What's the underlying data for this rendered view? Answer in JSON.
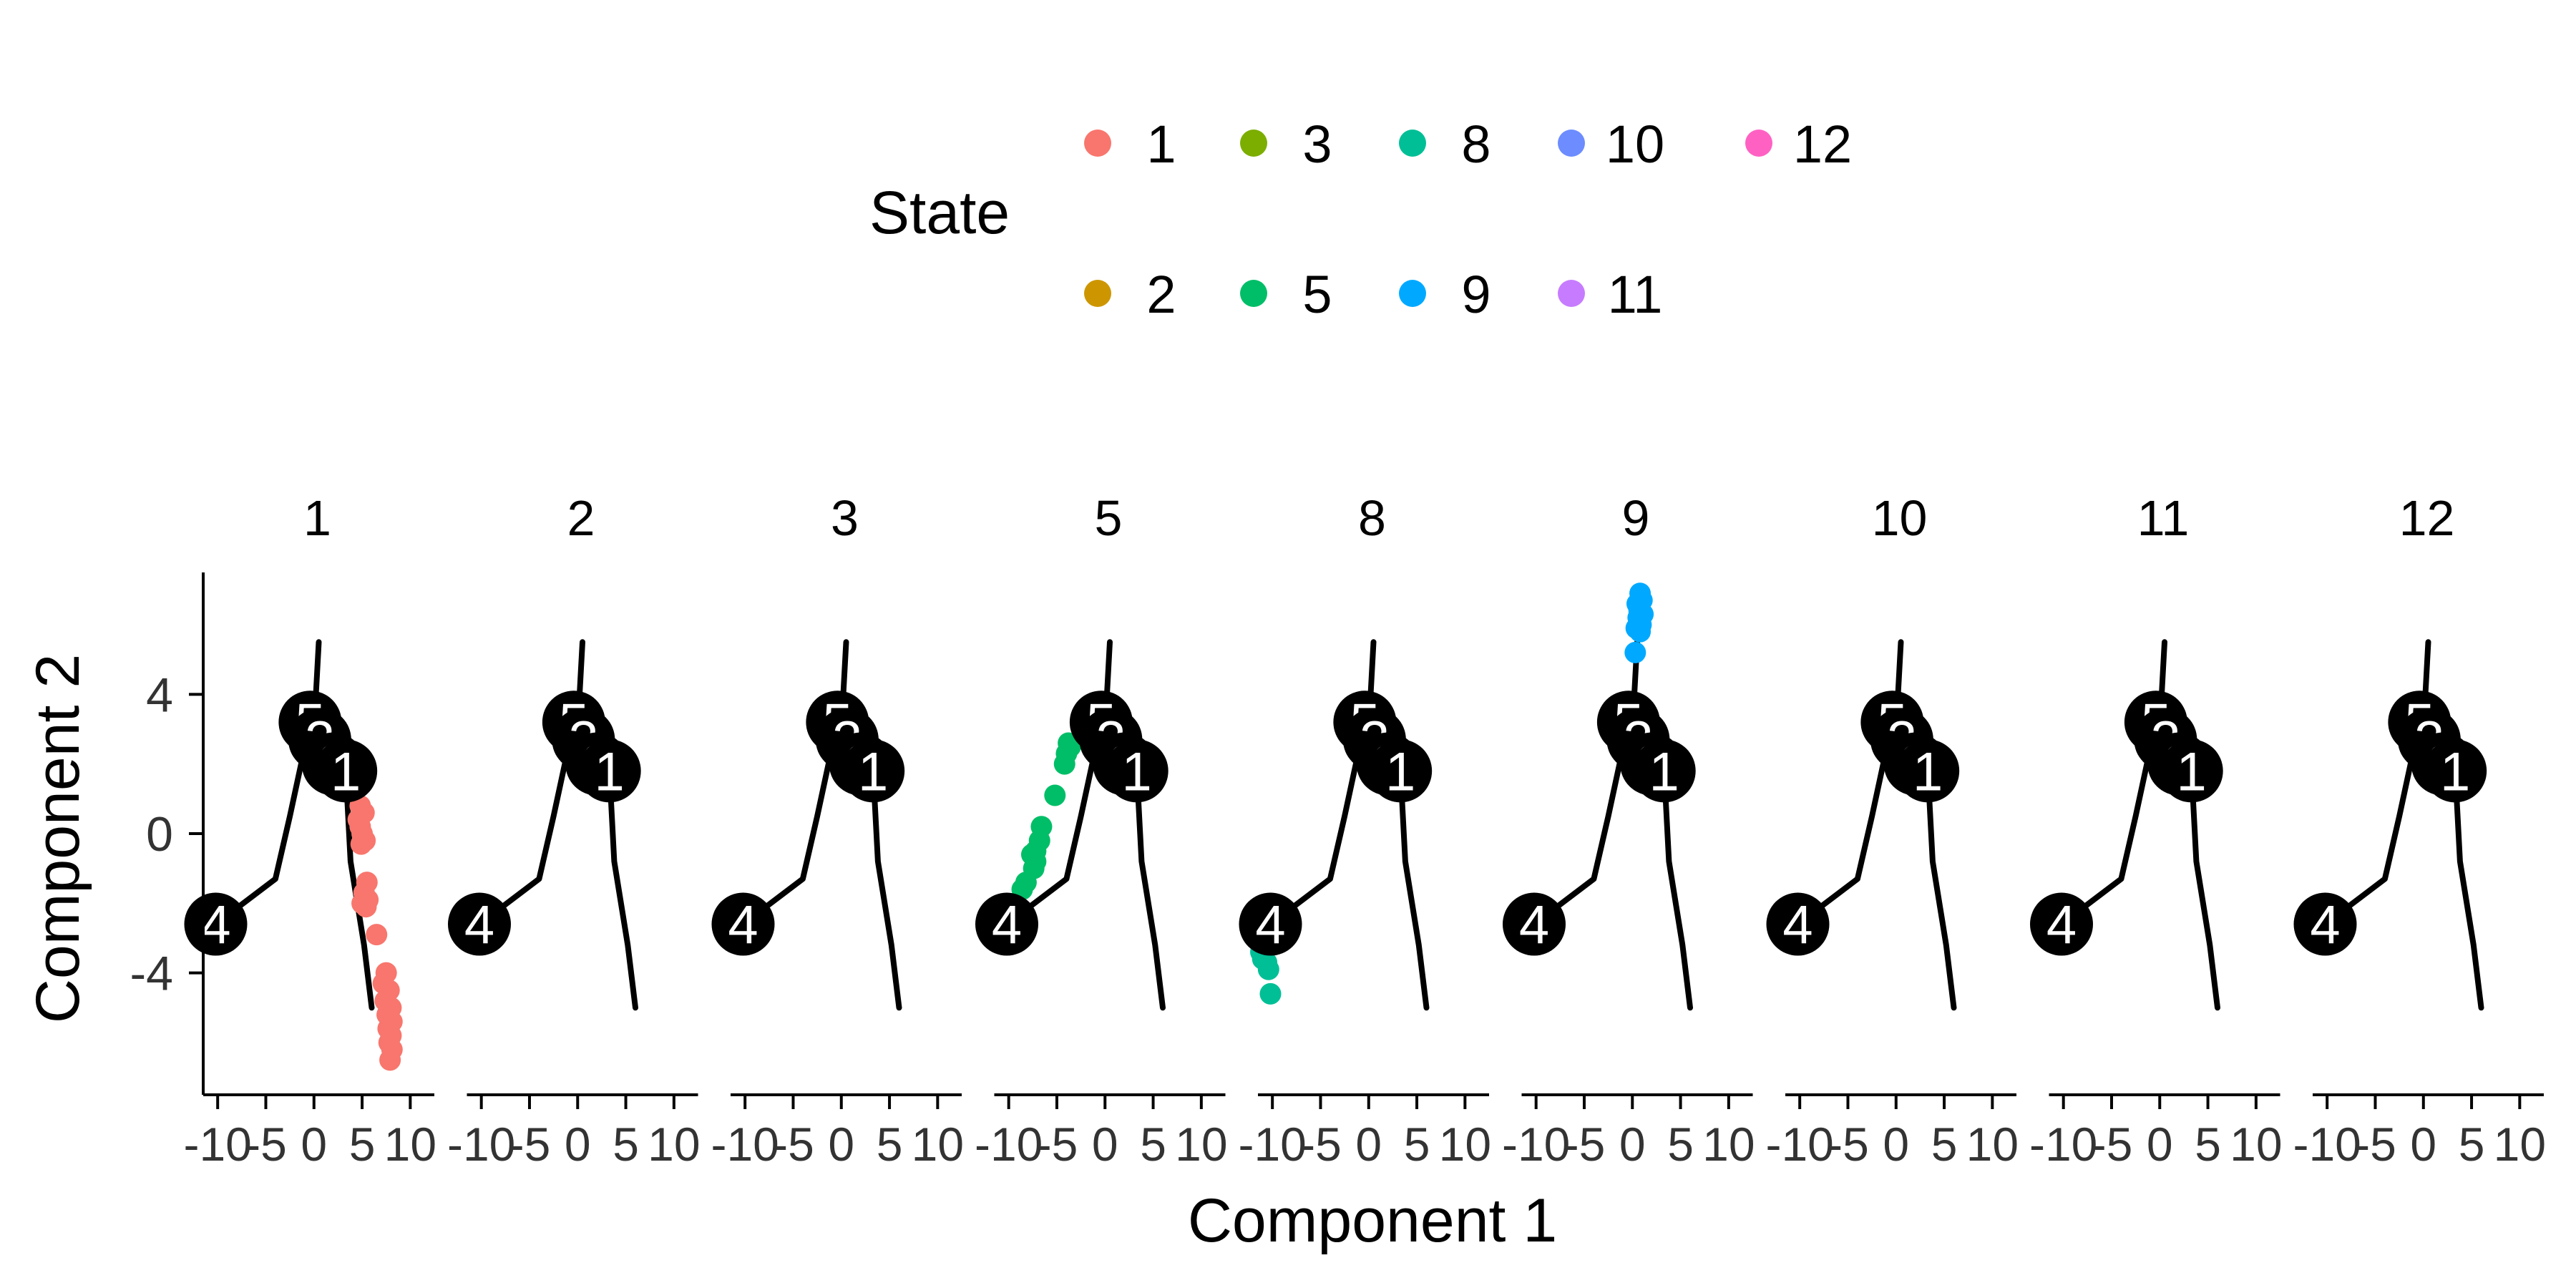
{
  "chart_data": {
    "type": "scatter",
    "xlabel": "Component 1",
    "ylabel": "Component 2",
    "xlim": [
      -11.5,
      12.5
    ],
    "ylim": [
      -7.5,
      7.5
    ],
    "x_ticks": [
      -10,
      -5,
      0,
      5,
      10
    ],
    "x_tick_labels": [
      "-10",
      "-5",
      "0",
      "5",
      "10"
    ],
    "y_ticks": [
      -4,
      0,
      4
    ],
    "y_tick_labels": [
      "-4",
      "0",
      "4"
    ],
    "grid": false,
    "legend": {
      "title": "State",
      "placement": "top",
      "entries": [
        {
          "label": "1",
          "color": "#F8766D"
        },
        {
          "label": "2",
          "color": "#CD9600"
        },
        {
          "label": "3",
          "color": "#7CAE00"
        },
        {
          "label": "5",
          "color": "#00BE67"
        },
        {
          "label": "8",
          "color": "#00BF96"
        },
        {
          "label": "9",
          "color": "#00A9FF"
        },
        {
          "label": "10",
          "color": "#6C8CFF"
        },
        {
          "label": "11",
          "color": "#C77CFF"
        },
        {
          "label": "12",
          "color": "#FF61C3"
        }
      ]
    },
    "trajectory": {
      "segments": [
        [
          [
            0.5,
            5.5
          ],
          [
            0.2,
            4.0
          ],
          [
            -0.4,
            3.2
          ]
        ],
        [
          [
            -0.4,
            3.2
          ],
          [
            -2.5,
            0.5
          ],
          [
            -4.0,
            -1.3
          ],
          [
            -10.2,
            -2.6
          ]
        ],
        [
          [
            -0.4,
            3.2
          ],
          [
            0.6,
            2.7
          ],
          [
            2.0,
            2.0
          ],
          [
            3.3,
            1.8
          ],
          [
            3.8,
            -0.8
          ],
          [
            5.2,
            -3.2
          ],
          [
            6.0,
            -5.0
          ]
        ]
      ],
      "branch_points": [
        {
          "label": "5",
          "x": -0.4,
          "y": 3.2
        },
        {
          "label": "2",
          "x": 0.6,
          "y": 2.7
        },
        {
          "label": "3",
          "x": 2.0,
          "y": 2.0
        },
        {
          "label": "1",
          "x": 3.3,
          "y": 1.8
        },
        {
          "label": "4",
          "x": -10.2,
          "y": -2.6
        }
      ]
    },
    "facets": [
      {
        "title": "1",
        "state": "1",
        "points": [
          [
            4.8,
            0.8
          ],
          [
            5.2,
            0.6
          ],
          [
            4.6,
            0.4
          ],
          [
            4.8,
            0.2
          ],
          [
            5.0,
            0.0
          ],
          [
            5.3,
            -0.2
          ],
          [
            4.9,
            -0.3
          ],
          [
            5.5,
            -1.4
          ],
          [
            5.2,
            -1.7
          ],
          [
            5.6,
            -1.9
          ],
          [
            5.0,
            -2.0
          ],
          [
            5.4,
            -2.1
          ],
          [
            6.5,
            -2.9
          ],
          [
            7.5,
            -4.0
          ],
          [
            7.2,
            -4.3
          ],
          [
            7.8,
            -4.5
          ],
          [
            7.4,
            -4.8
          ],
          [
            8.0,
            -5.0
          ],
          [
            7.6,
            -5.2
          ],
          [
            8.1,
            -5.4
          ],
          [
            7.7,
            -5.6
          ],
          [
            8.0,
            -5.8
          ],
          [
            7.8,
            -6.0
          ],
          [
            8.1,
            -6.2
          ],
          [
            7.9,
            -6.5
          ]
        ]
      },
      {
        "title": "2",
        "state": "2",
        "points": []
      },
      {
        "title": "3",
        "state": "3",
        "points": []
      },
      {
        "title": "5",
        "state": "5",
        "points": [
          [
            -3.8,
            2.6
          ],
          [
            -4.0,
            2.3
          ],
          [
            -3.6,
            2.5
          ],
          [
            -4.2,
            2.0
          ],
          [
            -5.2,
            1.1
          ],
          [
            -6.6,
            0.2
          ],
          [
            -6.8,
            -0.2
          ],
          [
            -7.2,
            -0.5
          ],
          [
            -7.6,
            -0.6
          ],
          [
            -7.2,
            -0.8
          ],
          [
            -7.4,
            -1.0
          ],
          [
            -8.2,
            -1.4
          ],
          [
            -8.6,
            -1.6
          ]
        ]
      },
      {
        "title": "8",
        "state": "8",
        "points": [
          [
            -11.2,
            -3.4
          ],
          [
            -11.0,
            -3.6
          ],
          [
            -10.6,
            -3.7
          ],
          [
            -10.4,
            -3.9
          ],
          [
            -10.2,
            -4.6
          ]
        ]
      },
      {
        "title": "9",
        "state": "9",
        "points": [
          [
            0.8,
            6.9
          ],
          [
            1.0,
            6.7
          ],
          [
            0.5,
            6.6
          ],
          [
            0.7,
            6.4
          ],
          [
            1.1,
            6.3
          ],
          [
            0.6,
            6.2
          ],
          [
            0.9,
            6.0
          ],
          [
            0.4,
            5.9
          ],
          [
            0.8,
            5.8
          ],
          [
            0.3,
            5.2
          ]
        ]
      },
      {
        "title": "10",
        "state": "10",
        "points": []
      },
      {
        "title": "11",
        "state": "11",
        "points": []
      },
      {
        "title": "12",
        "state": "12",
        "points": []
      }
    ]
  }
}
